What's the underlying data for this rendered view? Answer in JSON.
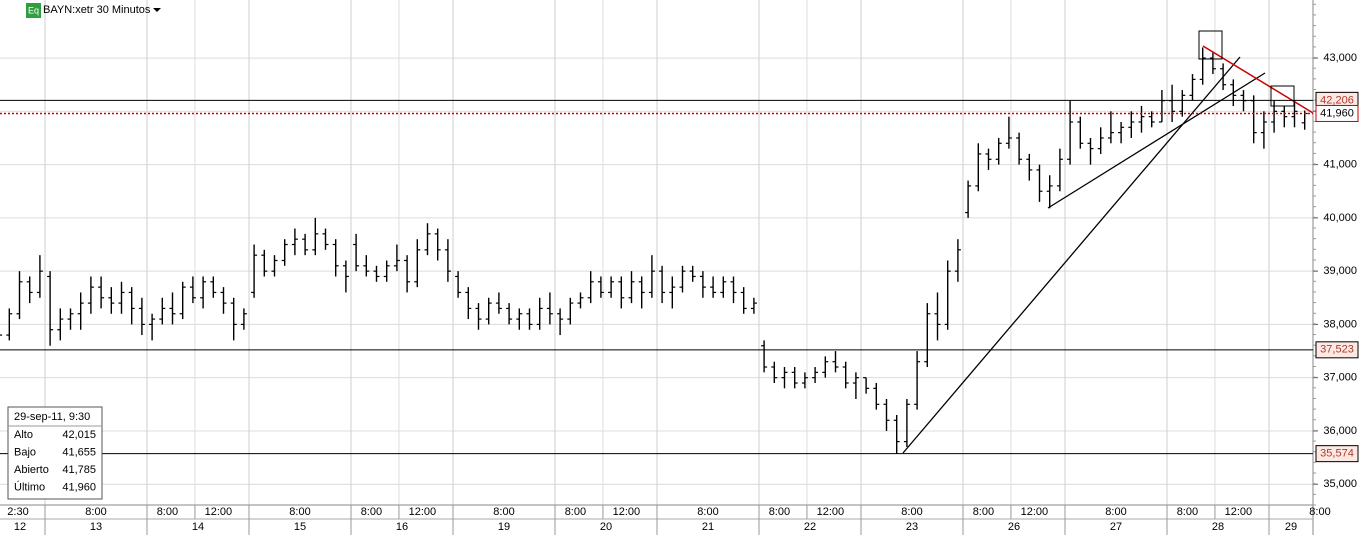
{
  "chart_data": {
    "type": "ohlc",
    "badge": "Eq",
    "title": "BAYN:xetr 30 Minutos",
    "ylim": [
      34.61,
      44.09
    ],
    "yticks": [
      {
        "value": 35,
        "label": "35,000"
      },
      {
        "value": 36,
        "label": "36,000"
      },
      {
        "value": 37,
        "label": "37,000"
      },
      {
        "value": 38,
        "label": "38,000"
      },
      {
        "value": 39,
        "label": "39,000"
      },
      {
        "value": 40,
        "label": "40,000"
      },
      {
        "value": 41,
        "label": "41,000"
      },
      {
        "value": 42,
        "label": "42,000"
      },
      {
        "value": 43,
        "label": "43,000"
      }
    ],
    "grid": true,
    "price_lines": [
      {
        "value": 42.206,
        "label": "42,206",
        "color": "#000000",
        "text_color": "#b03a2e",
        "dotted": false
      },
      {
        "value": 41.96,
        "label": "41,960",
        "color": "#cc0000",
        "text_color": "#000000",
        "dotted": true
      },
      {
        "value": 37.523,
        "label": "37,523",
        "color": "#000000",
        "text_color": "#b03a2e",
        "dotted": false
      },
      {
        "value": 35.574,
        "label": "35,574",
        "color": "#000000",
        "text_color": "#b03a2e",
        "dotted": false
      }
    ],
    "info": {
      "title": "29-sep-11, 9:30",
      "rows": [
        [
          "Alto",
          "42,015"
        ],
        [
          "Bajo",
          "41,655"
        ],
        [
          "Abierto",
          "41,785"
        ],
        [
          "Último",
          "41,960"
        ]
      ]
    },
    "sessions": [
      {
        "date": "12",
        "times": [
          "2:30"
        ],
        "bars": [
          [
            37.6,
            37.9,
            37.5,
            37.8
          ],
          [
            37.8,
            38.3,
            37.7,
            38.2
          ],
          [
            38.2,
            39.0,
            38.1,
            38.8
          ],
          [
            38.8,
            38.9,
            38.4,
            38.6
          ],
          [
            38.6,
            39.3,
            38.5,
            39.0
          ]
        ]
      },
      {
        "date": "13",
        "times": [
          "8:00"
        ],
        "bars": [
          [
            38.9,
            39.0,
            37.6,
            37.9
          ],
          [
            37.9,
            38.3,
            37.7,
            38.1
          ],
          [
            38.1,
            38.3,
            37.9,
            38.2
          ],
          [
            38.2,
            38.6,
            37.9,
            38.4
          ],
          [
            38.4,
            38.9,
            38.2,
            38.7
          ],
          [
            38.7,
            38.9,
            38.3,
            38.5
          ],
          [
            38.5,
            38.7,
            38.2,
            38.4
          ],
          [
            38.4,
            38.8,
            38.2,
            38.6
          ],
          [
            38.6,
            38.7,
            38.0,
            38.3
          ],
          [
            38.3,
            38.5,
            37.8,
            38.0
          ]
        ]
      },
      {
        "date": "14",
        "times": [
          "8:00",
          "12:00"
        ],
        "bars": [
          [
            38.0,
            38.2,
            37.7,
            38.1
          ],
          [
            38.1,
            38.5,
            38.0,
            38.3
          ],
          [
            38.3,
            38.6,
            38.0,
            38.2
          ],
          [
            38.2,
            38.8,
            38.1,
            38.7
          ],
          [
            38.7,
            38.9,
            38.4,
            38.5
          ],
          [
            38.5,
            38.9,
            38.3,
            38.8
          ],
          [
            38.8,
            38.9,
            38.5,
            38.6
          ],
          [
            38.6,
            38.7,
            38.2,
            38.4
          ],
          [
            38.4,
            38.5,
            37.7,
            38.0
          ],
          [
            38.0,
            38.3,
            37.9,
            38.2
          ]
        ]
      },
      {
        "date": "15",
        "times": [
          "8:00"
        ],
        "bars": [
          [
            38.6,
            39.5,
            38.5,
            39.3
          ],
          [
            39.3,
            39.4,
            38.9,
            39.0
          ],
          [
            39.0,
            39.3,
            38.9,
            39.2
          ],
          [
            39.2,
            39.6,
            39.1,
            39.5
          ],
          [
            39.5,
            39.8,
            39.3,
            39.6
          ],
          [
            39.6,
            39.7,
            39.3,
            39.4
          ],
          [
            39.4,
            40.0,
            39.3,
            39.7
          ],
          [
            39.7,
            39.8,
            39.4,
            39.5
          ],
          [
            39.5,
            39.6,
            38.9,
            39.1
          ],
          [
            39.1,
            39.2,
            38.6,
            38.9
          ]
        ]
      },
      {
        "date": "16",
        "times": [
          "8:00",
          "12:00"
        ],
        "bars": [
          [
            39.5,
            39.7,
            39.0,
            39.1
          ],
          [
            39.1,
            39.3,
            38.9,
            39.0
          ],
          [
            39.0,
            39.1,
            38.8,
            38.9
          ],
          [
            38.9,
            39.2,
            38.8,
            39.1
          ],
          [
            39.1,
            39.5,
            39.0,
            39.2
          ],
          [
            39.2,
            39.3,
            38.6,
            38.8
          ],
          [
            38.8,
            39.6,
            38.7,
            39.4
          ],
          [
            39.4,
            39.9,
            39.3,
            39.7
          ],
          [
            39.7,
            39.8,
            39.2,
            39.4
          ],
          [
            39.4,
            39.6,
            38.8,
            39.0
          ]
        ]
      },
      {
        "date": "19",
        "times": [
          "8:00"
        ],
        "bars": [
          [
            38.9,
            39.0,
            38.5,
            38.6
          ],
          [
            38.6,
            38.7,
            38.1,
            38.3
          ],
          [
            38.3,
            38.4,
            37.9,
            38.1
          ],
          [
            38.1,
            38.5,
            38.0,
            38.4
          ],
          [
            38.4,
            38.6,
            38.2,
            38.3
          ],
          [
            38.3,
            38.4,
            38.0,
            38.1
          ],
          [
            38.1,
            38.3,
            37.9,
            38.2
          ],
          [
            38.2,
            38.3,
            37.9,
            38.0
          ],
          [
            38.0,
            38.5,
            37.9,
            38.3
          ],
          [
            38.3,
            38.6,
            38.0,
            38.2
          ]
        ]
      },
      {
        "date": "20",
        "times": [
          "8:00",
          "12:00"
        ],
        "bars": [
          [
            38.2,
            38.3,
            37.8,
            38.1
          ],
          [
            38.1,
            38.5,
            38.0,
            38.4
          ],
          [
            38.4,
            38.6,
            38.3,
            38.5
          ],
          [
            38.5,
            39.0,
            38.4,
            38.8
          ],
          [
            38.8,
            38.9,
            38.5,
            38.6
          ],
          [
            38.6,
            38.9,
            38.5,
            38.8
          ],
          [
            38.8,
            38.9,
            38.3,
            38.5
          ],
          [
            38.5,
            39.0,
            38.4,
            38.8
          ],
          [
            38.8,
            38.9,
            38.3,
            38.6
          ],
          [
            38.6,
            39.3,
            38.5,
            39.0
          ]
        ]
      },
      {
        "date": "21",
        "times": [
          "8:00"
        ],
        "bars": [
          [
            39.0,
            39.1,
            38.4,
            38.6
          ],
          [
            38.6,
            38.9,
            38.3,
            38.7
          ],
          [
            38.7,
            39.1,
            38.6,
            39.0
          ],
          [
            39.0,
            39.1,
            38.8,
            38.9
          ],
          [
            38.9,
            39.0,
            38.5,
            38.7
          ],
          [
            38.7,
            38.9,
            38.5,
            38.6
          ],
          [
            38.6,
            38.9,
            38.5,
            38.8
          ],
          [
            38.8,
            38.9,
            38.4,
            38.6
          ],
          [
            38.6,
            38.7,
            38.2,
            38.3
          ],
          [
            38.3,
            38.5,
            38.2,
            38.4
          ]
        ]
      },
      {
        "date": "22",
        "times": [
          "8:00",
          "12:00"
        ],
        "bars": [
          [
            37.6,
            37.7,
            37.1,
            37.2
          ],
          [
            37.2,
            37.3,
            36.9,
            37.0
          ],
          [
            37.0,
            37.2,
            36.8,
            37.1
          ],
          [
            37.1,
            37.2,
            36.8,
            36.9
          ],
          [
            36.9,
            37.1,
            36.8,
            37.0
          ],
          [
            37.0,
            37.2,
            36.9,
            37.1
          ],
          [
            37.1,
            37.4,
            37.0,
            37.3
          ],
          [
            37.3,
            37.5,
            37.1,
            37.2
          ],
          [
            37.2,
            37.3,
            36.8,
            36.9
          ],
          [
            36.9,
            37.1,
            36.6,
            37.0
          ]
        ]
      },
      {
        "date": "23",
        "times": [
          "8:00"
        ],
        "bars": [
          [
            37.0,
            37.0,
            36.7,
            36.8
          ],
          [
            36.8,
            36.9,
            36.4,
            36.5
          ],
          [
            36.5,
            36.6,
            36.0,
            36.2
          ],
          [
            36.2,
            36.3,
            35.57,
            35.8
          ],
          [
            35.8,
            36.6,
            35.7,
            36.5
          ],
          [
            36.5,
            37.5,
            36.4,
            37.3
          ],
          [
            37.3,
            38.4,
            37.2,
            38.2
          ],
          [
            38.2,
            38.6,
            37.7,
            38.0
          ],
          [
            38.0,
            39.2,
            37.9,
            39.0
          ],
          [
            39.0,
            39.6,
            38.8,
            39.4
          ]
        ]
      },
      {
        "date": "26",
        "times": [
          "8:00",
          "12:00"
        ],
        "bars": [
          [
            40.1,
            40.7,
            40.0,
            40.6
          ],
          [
            40.6,
            41.4,
            40.5,
            41.2
          ],
          [
            41.2,
            41.3,
            40.9,
            41.1
          ],
          [
            41.1,
            41.5,
            41.0,
            41.4
          ],
          [
            41.4,
            41.9,
            41.3,
            41.5
          ],
          [
            41.5,
            41.6,
            41.0,
            41.1
          ],
          [
            41.1,
            41.2,
            40.7,
            40.9
          ],
          [
            40.9,
            41.0,
            40.3,
            40.5
          ],
          [
            40.5,
            40.8,
            40.18,
            40.6
          ],
          [
            40.6,
            41.3,
            40.5,
            41.1
          ]
        ]
      },
      {
        "date": "27",
        "times": [
          "8:00"
        ],
        "bars": [
          [
            41.1,
            42.2,
            41.0,
            41.8
          ],
          [
            41.8,
            41.9,
            41.3,
            41.4
          ],
          [
            41.4,
            41.5,
            41.0,
            41.3
          ],
          [
            41.3,
            41.7,
            41.2,
            41.5
          ],
          [
            41.5,
            42.0,
            41.4,
            41.6
          ],
          [
            41.6,
            41.8,
            41.4,
            41.7
          ],
          [
            41.7,
            42.0,
            41.5,
            41.8
          ],
          [
            41.8,
            42.1,
            41.6,
            41.9
          ],
          [
            41.9,
            42.0,
            41.7,
            41.8
          ],
          [
            41.8,
            42.4,
            41.8,
            42.2
          ]
        ]
      },
      {
        "date": "28",
        "times": [
          "8:00",
          "12:00"
        ],
        "bars": [
          [
            42.2,
            42.5,
            41.8,
            42.0
          ],
          [
            42.0,
            42.4,
            41.9,
            42.3
          ],
          [
            42.3,
            42.7,
            42.2,
            42.6
          ],
          [
            42.6,
            43.2,
            42.5,
            43.0
          ],
          [
            43.0,
            43.1,
            42.7,
            42.8
          ],
          [
            42.8,
            42.9,
            42.4,
            42.5
          ],
          [
            42.5,
            42.6,
            42.1,
            42.3
          ],
          [
            42.3,
            42.4,
            42.0,
            42.2
          ],
          [
            42.2,
            42.3,
            41.4,
            41.6
          ],
          [
            41.6,
            42.0,
            41.3,
            41.8
          ]
        ]
      },
      {
        "date": "29",
        "times": [
          "8:00"
        ],
        "bars": [
          [
            41.8,
            42.2,
            41.6,
            42.0
          ],
          [
            42.0,
            42.1,
            41.7,
            41.9
          ],
          [
            41.9,
            42.2,
            41.7,
            42.0
          ],
          [
            41.785,
            42.015,
            41.655,
            41.96
          ]
        ]
      }
    ]
  }
}
